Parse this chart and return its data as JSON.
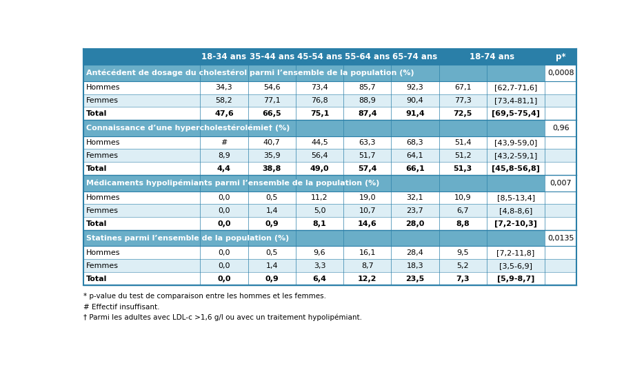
{
  "header_bg": "#2a7fa8",
  "section_bg": "#6aaec8",
  "row_bg_odd": "#ffffff",
  "row_bg_even": "#ddeef5",
  "header_text_color": "#ffffff",
  "body_text_color": "#000000",
  "border_color": "#2a7fa8",
  "figsize": [
    9.34,
    5.56
  ],
  "dpi": 100,
  "col_headers": [
    "18-34 ans",
    "35-44 ans",
    "45-54 ans",
    "55-64 ans",
    "65-74 ans",
    "18-74 ans",
    "p*"
  ],
  "sections": [
    {
      "title": "Antécédent de dosage du cholestérol parmi l’ensemble de la population (%)",
      "p_value": "0,0008",
      "rows": [
        {
          "label": "Hommes",
          "bold": false,
          "values": [
            "34,3",
            "54,6",
            "73,4",
            "85,7",
            "92,3",
            "67,1",
            "[62,7-71,6]"
          ]
        },
        {
          "label": "Femmes",
          "bold": false,
          "values": [
            "58,2",
            "77,1",
            "76,8",
            "88,9",
            "90,4",
            "77,3",
            "[73,4-81,1]"
          ]
        },
        {
          "label": "Total",
          "bold": true,
          "values": [
            "47,6",
            "66,5",
            "75,1",
            "87,4",
            "91,4",
            "72,5",
            "[69,5-75,4]"
          ]
        }
      ]
    },
    {
      "title": "Connaissance d’une hypercholestérolémie† (%)",
      "p_value": "0,96",
      "rows": [
        {
          "label": "Hommes",
          "bold": false,
          "values": [
            "#",
            "40,7",
            "44,5",
            "63,3",
            "68,3",
            "51,4",
            "[43,9-59,0]"
          ]
        },
        {
          "label": "Femmes",
          "bold": false,
          "values": [
            "8,9",
            "35,9",
            "56,4",
            "51,7",
            "64,1",
            "51,2",
            "[43,2-59,1]"
          ]
        },
        {
          "label": "Total",
          "bold": true,
          "values": [
            "4,4",
            "38,8",
            "49,0",
            "57,4",
            "66,1",
            "51,3",
            "[45,8-56,8]"
          ]
        }
      ]
    },
    {
      "title": "Médicaments hypolipémiants parmi l’ensemble de la population (%)",
      "p_value": "0,007",
      "rows": [
        {
          "label": "Hommes",
          "bold": false,
          "values": [
            "0,0",
            "0,5",
            "11,2",
            "19,0",
            "32,1",
            "10,9",
            "[8,5-13,4]"
          ]
        },
        {
          "label": "Femmes",
          "bold": false,
          "values": [
            "0,0",
            "1,4",
            "5,0",
            "10,7",
            "23,7",
            "6,7",
            "[4,8-8,6]"
          ]
        },
        {
          "label": "Total",
          "bold": true,
          "values": [
            "0,0",
            "0,9",
            "8,1",
            "14,6",
            "28,0",
            "8,8",
            "[7,2-10,3]"
          ]
        }
      ]
    },
    {
      "title": "Statines parmi l’ensemble de la population (%)",
      "p_value": "0,0135",
      "rows": [
        {
          "label": "Hommes",
          "bold": false,
          "values": [
            "0,0",
            "0,5",
            "9,6",
            "16,1",
            "28,4",
            "9,5",
            "[7,2-11,8]"
          ]
        },
        {
          "label": "Femmes",
          "bold": false,
          "values": [
            "0,0",
            "1,4",
            "3,3",
            "8,7",
            "18,3",
            "5,2",
            "[3,5-6,9]"
          ]
        },
        {
          "label": "Total",
          "bold": true,
          "values": [
            "0,0",
            "0,9",
            "6,4",
            "12,2",
            "23,5",
            "7,3",
            "[5,9-8,7]"
          ]
        }
      ]
    }
  ],
  "footnotes": [
    "* p-value du test de comparaison entre les hommes et les femmes.",
    "# Effectif insuffisant.",
    "† Parmi les adultes avec LDL-c >1,6 g/l ou avec un traitement hypolipémiant."
  ]
}
